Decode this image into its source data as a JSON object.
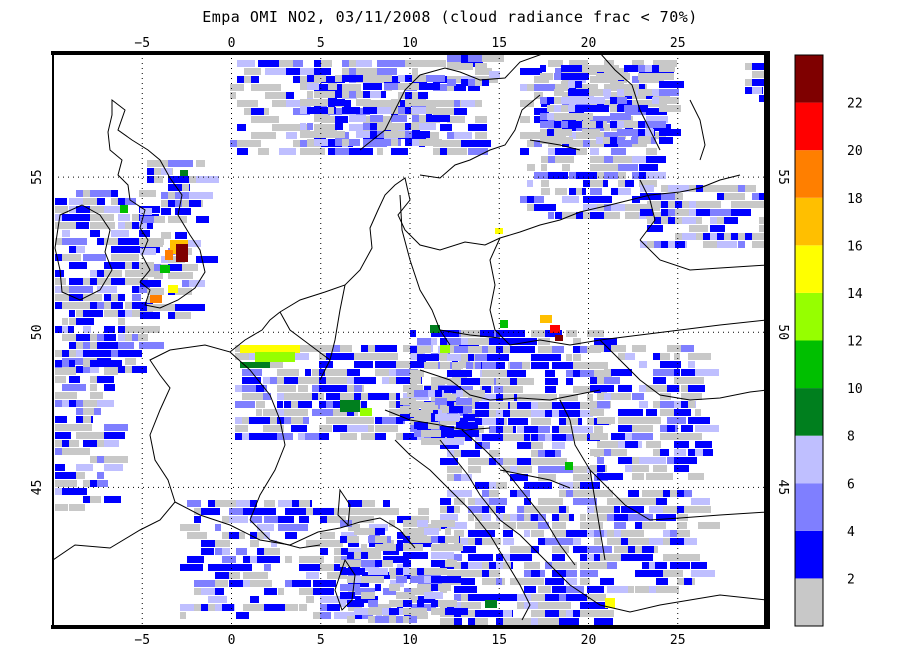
{
  "title": "Empa OMI NO2, 03/11/2008 (cloud radiance frac < 70%)",
  "map": {
    "lon_range": [
      -10,
      30
    ],
    "lat_range": [
      40.5,
      59
    ],
    "lon_ticks": [
      -5,
      0,
      5,
      10,
      15,
      20,
      25
    ],
    "lat_ticks": [
      45,
      50,
      55
    ],
    "lon_tick_labels": [
      "−5",
      "0",
      "5",
      "10",
      "15",
      "20",
      "25"
    ],
    "lat_tick_labels": [
      "45",
      "50",
      "55"
    ],
    "grid": true,
    "grid_style": "dotted"
  },
  "colorbar": {
    "levels": [
      {
        "label": "2",
        "color": "#c8c8c8"
      },
      {
        "label": "4",
        "color": "#0000ff"
      },
      {
        "label": "6",
        "color": "#7f7fff"
      },
      {
        "label": "8",
        "color": "#bfbfff"
      },
      {
        "label": "10",
        "color": "#007f1e"
      },
      {
        "label": "12",
        "color": "#00bf00"
      },
      {
        "label": "14",
        "color": "#96ff00"
      },
      {
        "label": "16",
        "color": "#ffff00"
      },
      {
        "label": "18",
        "color": "#ffbf00"
      },
      {
        "label": "20",
        "color": "#ff7f00"
      },
      {
        "label": "22",
        "color": "#ff0000"
      },
      {
        "label": "",
        "color": "#7f0000"
      }
    ]
  }
}
